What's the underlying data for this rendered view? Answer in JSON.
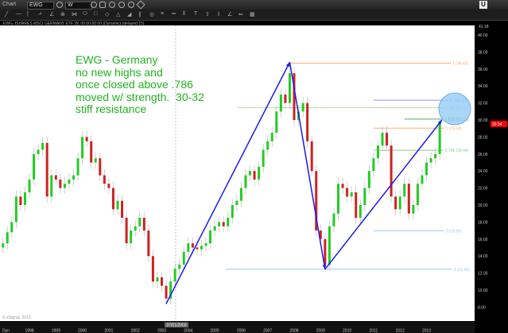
{
  "toolbar": {
    "chart_label": "Chart",
    "symbol": "EWG",
    "interval": "W",
    "u_button": "U",
    "tools": [
      "╱",
      "—",
      "|",
      "⩘",
      "∠",
      "⊗",
      "⋈",
      "⬭",
      "□",
      "◇",
      "△",
      "◢",
      "∥",
      "◎",
      "≡",
      "═",
      "‖",
      "T",
      "⇧",
      "⇩",
      "∠",
      "⇐",
      "▦"
    ]
  },
  "header": "EWG, ISHARES MSCI GERMANY ETF, W, 00:00-00:00 (Dynamic) (delayed 15)",
  "annotation": "EWG - Germany\nno new highs and\nonce closed above .786\nmoved w/ strength.  30-32\nstiff resistance",
  "watermark": "© eSignal, 2013",
  "bottom": {
    "period_label": "Dyn",
    "crosshair_date": "07/01/2003"
  },
  "chart_data": {
    "type": "candlestick",
    "ylim": [
      6.7,
      41.18
    ],
    "y_ticks": [
      "40.00",
      "38.00",
      "36.00",
      "34.00",
      "32.00",
      "30.00",
      "28.00",
      "26.00",
      "24.00",
      "22.00",
      "20.00",
      "18.00",
      "16.00",
      "14.00",
      "12.00",
      "10.00",
      "8.00"
    ],
    "y_top_label": "41.18",
    "last_price": "29.54",
    "x_ticks": [
      "1998",
      "1999",
      "2000",
      "2001",
      "2002",
      "2003",
      "2004",
      "2005",
      "2006",
      "2007",
      "2008",
      "2009",
      "2010",
      "2011",
      "2012",
      "2013"
    ],
    "x": [
      "1996-11",
      "1997-01",
      "1997-03",
      "1997-05",
      "1997-07",
      "1997-09",
      "1997-11",
      "1998-01",
      "1998-03",
      "1998-05",
      "1998-07",
      "1998-09",
      "1998-11",
      "1999-01",
      "1999-03",
      "1999-05",
      "1999-07",
      "1999-09",
      "1999-11",
      "2000-01",
      "2000-03",
      "2000-05",
      "2000-07",
      "2000-09",
      "2000-11",
      "2001-01",
      "2001-03",
      "2001-05",
      "2001-07",
      "2001-09",
      "2001-11",
      "2002-01",
      "2002-03",
      "2002-05",
      "2002-07",
      "2002-09",
      "2002-11",
      "2003-01",
      "2003-03",
      "2003-05",
      "2003-07",
      "2003-09",
      "2003-11",
      "2004-01",
      "2004-03",
      "2004-05",
      "2004-07",
      "2004-09",
      "2004-11",
      "2005-01",
      "2005-03",
      "2005-05",
      "2005-07",
      "2005-09",
      "2005-11",
      "2006-01",
      "2006-03",
      "2006-05",
      "2006-07",
      "2006-09",
      "2006-11",
      "2007-01",
      "2007-03",
      "2007-05",
      "2007-07",
      "2007-09",
      "2007-11",
      "2008-01",
      "2008-03",
      "2008-05",
      "2008-07",
      "2008-09",
      "2008-11",
      "2009-01",
      "2009-03",
      "2009-05",
      "2009-07",
      "2009-09",
      "2009-11",
      "2010-01",
      "2010-03",
      "2010-05",
      "2010-07",
      "2010-09",
      "2010-11",
      "2011-01",
      "2011-03",
      "2011-05",
      "2011-07",
      "2011-09",
      "2011-11",
      "2012-01",
      "2012-03",
      "2012-05",
      "2012-07",
      "2012-09",
      "2012-11",
      "2013-01",
      "2013-03",
      "2013-05",
      "2013-07"
    ],
    "close": [
      15.0,
      15.5,
      16.8,
      18.0,
      21.0,
      20.0,
      21.5,
      23.0,
      26.0,
      26.5,
      27.3,
      21.0,
      23.5,
      23.0,
      22.0,
      22.5,
      23.0,
      23.5,
      25.5,
      28.0,
      27.5,
      25.0,
      25.5,
      23.5,
      22.5,
      22.0,
      19.5,
      20.5,
      18.5,
      15.5,
      17.0,
      17.5,
      18.5,
      17.0,
      14.0,
      11.0,
      11.5,
      10.5,
      9.0,
      11.0,
      12.5,
      13.0,
      14.5,
      15.5,
      15.0,
      14.8,
      15.2,
      15.5,
      17.0,
      17.5,
      18.0,
      17.5,
      18.5,
      20.0,
      20.5,
      22.0,
      23.5,
      24.0,
      23.0,
      24.5,
      26.5,
      27.5,
      28.5,
      31.0,
      33.0,
      32.0,
      35.5,
      30.0,
      31.0,
      32.0,
      27.5,
      24.0,
      17.0,
      16.0,
      13.0,
      17.5,
      19.0,
      22.5,
      22.0,
      21.0,
      21.5,
      18.5,
      20.0,
      22.0,
      24.0,
      25.5,
      27.0,
      28.5,
      27.0,
      21.0,
      19.5,
      21.0,
      22.5,
      19.0,
      20.0,
      22.5,
      23.5,
      25.0,
      25.5,
      26.0,
      29.5
    ],
    "colors": {
      "up": "#22cc22",
      "down": "#cc2222",
      "wick": "#bbbbbb",
      "trend": "#1a1aee",
      "circle": "#8ec8f5",
      "last_price_tag": "#ff0000"
    },
    "fib_levels": [
      {
        "label": "1 (36.68)",
        "value": 36.68,
        "color": "#ffb07a",
        "from": "2007-11",
        "to": "2013-12"
      },
      {
        "label": "1.27 (32.32)",
        "value": 32.32,
        "color": "#9090f0",
        "from": "2011-01",
        "to": "2013-09"
      },
      {
        "label": "0.786 (31.46)",
        "value": 31.46,
        "color": "#a8dca8",
        "from": "2005-11",
        "to": "2013-10"
      },
      {
        "label": "0.618 (30.11)",
        "value": 30.11,
        "color": "#55b055",
        "from": "2012-03",
        "to": "2013-10"
      },
      {
        "label": "1 (29.04)",
        "value": 29.04,
        "color": "#ffb07a",
        "from": "2011-01",
        "to": "2013-09"
      },
      {
        "label": "0.786 (26.44)",
        "value": 26.44,
        "color": "#88cc88",
        "from": "2011-01",
        "to": "2013-09"
      },
      {
        "label": "0 (16.98)",
        "value": 16.98,
        "color": "#99ccf0",
        "from": "2011-01",
        "to": "2013-09"
      },
      {
        "label": "0 (12.45)",
        "value": 12.45,
        "color": "#99ccf0",
        "from": "2005-06",
        "to": "2014-01"
      }
    ],
    "trend_lines": [
      {
        "from": [
          "2003-03",
          8.4
        ],
        "to": [
          "2007-11",
          36.8
        ]
      },
      {
        "from": [
          "2007-11",
          36.8
        ],
        "to": [
          "2009-03",
          12.45
        ]
      },
      {
        "from": [
          "2009-03",
          12.45
        ],
        "to": [
          "2013-08",
          30.0
        ]
      }
    ],
    "grid": false
  }
}
